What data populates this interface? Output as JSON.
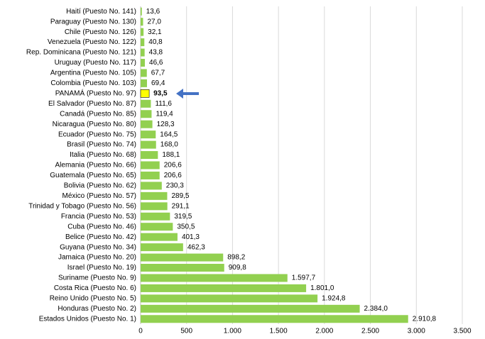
{
  "chart_data": {
    "type": "bar",
    "orientation": "horizontal",
    "categories": [
      "Haití (Puesto No. 141)",
      "Paraguay (Puesto No. 130)",
      "Chile (Puesto No. 126)",
      "Venezuela (Puesto No. 122)",
      "Rep. Dominicana (Puesto No. 121)",
      "Uruguay (Puesto No. 117)",
      "Argentina (Puesto No. 105)",
      "Colombia (Puesto No. 103)",
      "PANAMÁ (Puesto No. 97)",
      "El Salvador (Puesto No. 87)",
      "Canadá (Puesto No. 85)",
      "Nicaragua (Puesto No. 80)",
      "Ecuador (Puesto No. 75)",
      "Brasil (Puesto No. 74)",
      "Italia (Puesto No. 68)",
      "Alemania (Puesto No. 66)",
      "Guatemala (Puesto No. 65)",
      "Bolivia (Puesto No. 62)",
      "México (Puesto No. 57)",
      "Trinidad y Tobago (Puesto No. 56)",
      "Francia (Puesto No. 53)",
      "Cuba (Puesto No. 46)",
      "Belice (Puesto No. 42)",
      "Guyana (Puesto No. 34)",
      "Jamaica (Puesto No. 20)",
      "Israel (Puesto No. 19)",
      "Suriname (Puesto No. 9)",
      "Costa Rica (Puesto No. 6)",
      "Reino Unido (Puesto No. 5)",
      "Honduras (Puesto No. 2)",
      "Estados Unidos (Puesto No. 1)"
    ],
    "values": [
      13.6,
      27.0,
      32.1,
      40.8,
      43.8,
      46.6,
      67.7,
      69.4,
      93.5,
      111.6,
      119.4,
      128.3,
      164.5,
      168.0,
      188.1,
      206.6,
      206.6,
      230.3,
      289.5,
      291.1,
      319.5,
      350.5,
      401.3,
      462.3,
      898.2,
      909.8,
      1597.7,
      1801.0,
      1924.8,
      2384.0,
      2910.8
    ],
    "value_labels": [
      "13,6",
      "27,0",
      "32,1",
      "40,8",
      "43,8",
      "46,6",
      "67,7",
      "69,4",
      "93,5",
      "111,6",
      "119,4",
      "128,3",
      "164,5",
      "168,0",
      "188,1",
      "206,6",
      "206,6",
      "230,3",
      "289,5",
      "291,1",
      "319,5",
      "350,5",
      "401,3",
      "462,3",
      "898,2",
      "909,8",
      "1.597,7",
      "1.801,0",
      "1.924,8",
      "2.384,0",
      "2.910,8"
    ],
    "colors": [
      "#92d050",
      "#92d050",
      "#92d050",
      "#92d050",
      "#92d050",
      "#92d050",
      "#92d050",
      "#92d050",
      "#ffff00",
      "#92d050",
      "#92d050",
      "#92d050",
      "#92d050",
      "#92d050",
      "#92d050",
      "#92d050",
      "#92d050",
      "#92d050",
      "#92d050",
      "#92d050",
      "#92d050",
      "#92d050",
      "#92d050",
      "#92d050",
      "#92d050",
      "#92d050",
      "#92d050",
      "#92d050",
      "#92d050",
      "#92d050",
      "#92d050"
    ],
    "xlim": [
      0,
      3500
    ],
    "xticks": [
      0,
      500,
      {
        "value": 1000,
        "label": "1.000"
      },
      {
        "value": 1500,
        "label": "1.500"
      },
      {
        "value": 2000,
        "label": "2.000"
      },
      {
        "value": 2500,
        "label": "2.500"
      },
      {
        "value": 3000,
        "label": "3.000"
      },
      {
        "value": 3500,
        "label": "3.500"
      }
    ],
    "grid": true
  }
}
